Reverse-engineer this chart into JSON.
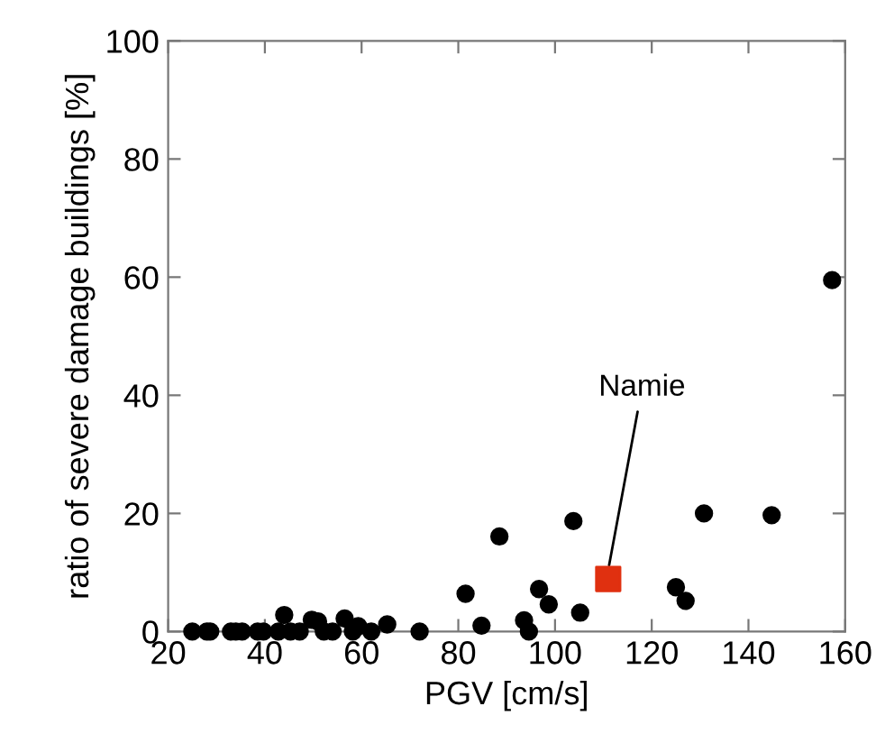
{
  "chart_data": {
    "type": "scatter",
    "xlabel": "PGV [cm/s]",
    "ylabel": "ratio of severe damage buildings [%]",
    "series": [
      {
        "color": "#000000",
        "marker": "circle",
        "x": [
          25,
          28,
          28.7,
          33,
          34,
          35.3,
          38.5,
          39.7,
          42.8,
          44,
          45.3,
          47.2,
          49.7,
          51,
          52.2,
          54,
          56.5,
          58.2,
          59.3,
          62,
          65.3,
          72,
          81.5,
          84.8,
          88.5,
          93.6,
          94.6,
          96.7,
          98.7,
          103.8,
          105.2,
          125,
          127,
          130.8,
          144.8,
          157.3
        ],
        "values": [
          0,
          0,
          0,
          0,
          0,
          0,
          0,
          0,
          0,
          2.8,
          0,
          0,
          2,
          1.7,
          0,
          0,
          2.2,
          0,
          0.9,
          0,
          1.2,
          0,
          6.4,
          1,
          16.1,
          1.9,
          0,
          7.2,
          4.6,
          18.7,
          3.2,
          7.5,
          5.2,
          20,
          19.7,
          59.5
        ]
      },
      {
        "color": "#e03010",
        "marker": "square",
        "x": [
          111
        ],
        "values": [
          8.9
        ]
      }
    ],
    "annotations": [
      {
        "text": "Namie",
        "x": 111,
        "y": 8.9
      }
    ],
    "xlim": [
      20,
      160
    ],
    "xticks": [
      20,
      40,
      60,
      80,
      100,
      120,
      140,
      160
    ],
    "ylim": [
      0,
      100
    ],
    "yticks": [
      0,
      20,
      40,
      60,
      80,
      100
    ],
    "grid": false,
    "legend": false
  }
}
